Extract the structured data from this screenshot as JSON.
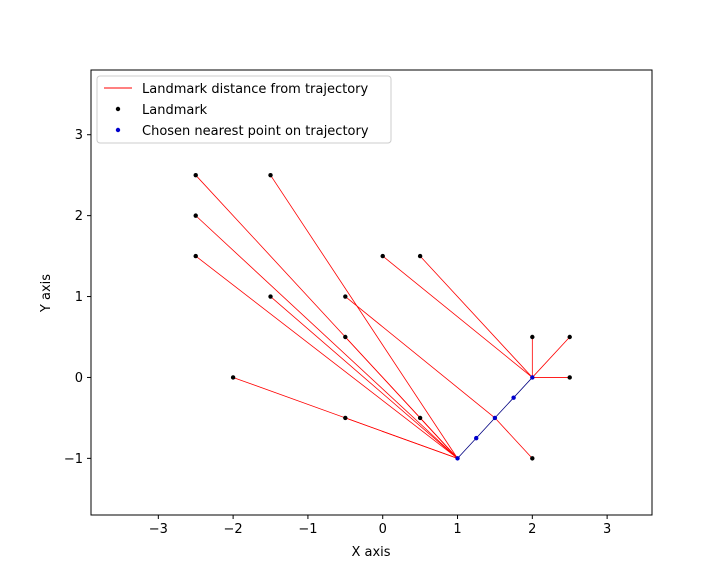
{
  "chart_data": {
    "type": "scatter",
    "title": "",
    "xlabel": "X axis",
    "ylabel": "Y axis",
    "xlim": [
      -3.9,
      3.6
    ],
    "ylim": [
      -1.7,
      3.8
    ],
    "xticks": [
      -3,
      -2,
      -1,
      0,
      1,
      2,
      3
    ],
    "yticks": [
      -1,
      0,
      1,
      2,
      3
    ],
    "grid": false,
    "legend_position": "top-left",
    "trajectory": {
      "color": "#000080",
      "points": [
        [
          1,
          -1
        ],
        [
          1.25,
          -0.75
        ],
        [
          1.5,
          -0.5
        ],
        [
          1.75,
          -0.25
        ],
        [
          2,
          0
        ]
      ]
    },
    "landmarks": [
      [
        -2.5,
        2.5
      ],
      [
        -1.5,
        2.5
      ],
      [
        -2.5,
        2.0
      ],
      [
        -2.5,
        1.5
      ],
      [
        0,
        1.5
      ],
      [
        0.5,
        1.5
      ],
      [
        -1.5,
        1.0
      ],
      [
        -0.5,
        1.0
      ],
      [
        -0.5,
        0.5
      ],
      [
        2,
        0.5
      ],
      [
        2.5,
        0.5
      ],
      [
        -2,
        0
      ],
      [
        2.5,
        0
      ],
      [
        -0.5,
        -0.5
      ],
      [
        0.5,
        -0.5
      ],
      [
        2,
        -1
      ]
    ],
    "chosen_points": [
      [
        1,
        -1
      ],
      [
        1,
        -1
      ],
      [
        1,
        -1
      ],
      [
        1,
        -1
      ],
      [
        2,
        0
      ],
      [
        2,
        0
      ],
      [
        1,
        -1
      ],
      [
        1.5,
        -0.5
      ],
      [
        1,
        -1
      ],
      [
        2,
        0
      ],
      [
        2,
        0
      ],
      [
        1,
        -1
      ],
      [
        2,
        0
      ],
      [
        1,
        -1
      ],
      [
        1,
        -1
      ],
      [
        1.5,
        -0.5
      ]
    ],
    "series": [
      {
        "name": "Landmark distance from trajectory",
        "kind": "line",
        "color": "#ff0000"
      },
      {
        "name": "Landmark",
        "kind": "marker",
        "color": "#000000"
      },
      {
        "name": "Chosen nearest point on trajectory",
        "kind": "marker",
        "color": "#0000cd"
      }
    ],
    "extra_chosen_points": [
      [
        1.25,
        -0.75
      ],
      [
        1.75,
        -0.25
      ]
    ]
  }
}
